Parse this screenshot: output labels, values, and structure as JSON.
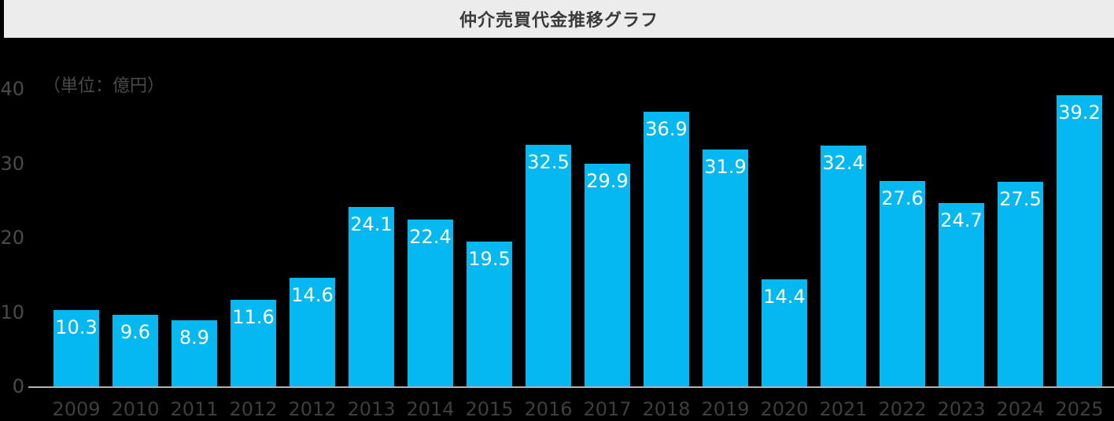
{
  "title": "仲介売買代金推移グラフ",
  "unit_label": "（単位：億円）",
  "colors": {
    "page_background": "#000000",
    "title_bar_background": "#ececec",
    "title_text": "#3a3a3a",
    "bar_fill": "#05b8f0",
    "bar_value_text": "#ffffff",
    "axis_tick_text": "#4a4a4a",
    "x_tick_text": "#3e3e3e",
    "axis_line": "#b3b3b3"
  },
  "chart_data": {
    "type": "bar",
    "title": "仲介売買代金推移グラフ",
    "ylabel": "（単位：億円）",
    "categories": [
      "2009",
      "2010",
      "2011",
      "2012",
      "2012",
      "2013",
      "2014",
      "2015",
      "2016",
      "2017",
      "2018",
      "2019",
      "2020",
      "2021",
      "2022",
      "2023",
      "2024",
      "2025"
    ],
    "values": [
      10.3,
      9.6,
      8.9,
      11.6,
      14.6,
      24.1,
      22.4,
      19.5,
      32.5,
      29.9,
      36.9,
      31.9,
      14.4,
      32.4,
      27.6,
      24.7,
      27.5,
      39.2
    ],
    "yticks": [
      0,
      10,
      20,
      30,
      40
    ],
    "ylim": [
      0,
      42
    ],
    "grid": "off",
    "legend": "none",
    "value_labels": "inside-top"
  }
}
